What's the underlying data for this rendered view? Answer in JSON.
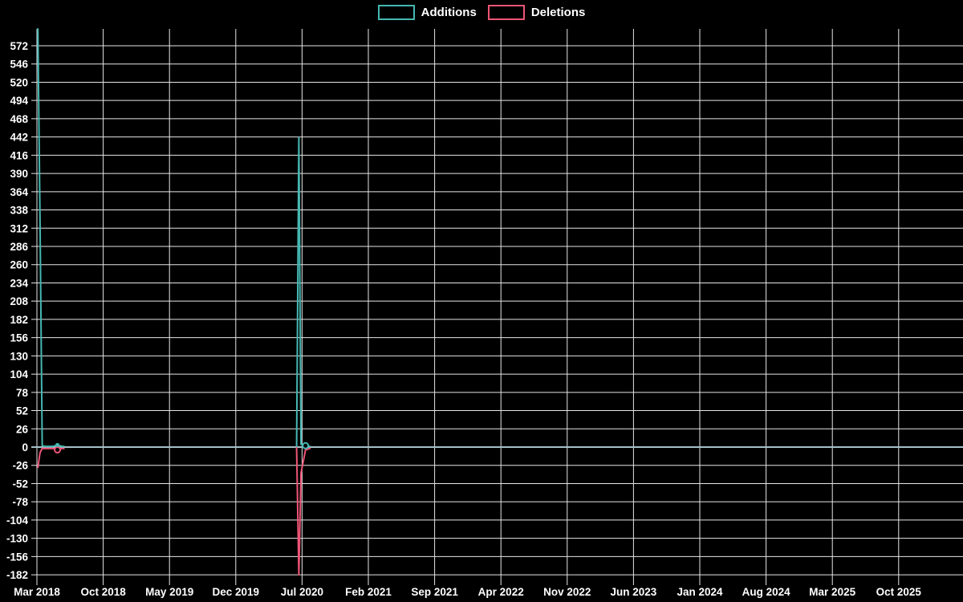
{
  "chart_data": {
    "type": "line",
    "title": "",
    "background": "#000000",
    "grid_color": "#e6e6e6",
    "zero_line_color": "#a6c0c9",
    "text_color": "#ffffff",
    "legend_position": "top-center",
    "x_axis": {
      "labels": [
        "Mar 2018",
        "Oct 2018",
        "May 2019",
        "Dec 2019",
        "Jul 2020",
        "Feb 2021",
        "Sep 2021",
        "Apr 2022",
        "Nov 2022",
        "Jun 2023",
        "Jan 2024",
        "Aug 2024",
        "Mar 2025",
        "Oct 2025"
      ],
      "label_step_months": 7,
      "start": "2018-03"
    },
    "y_axis": {
      "min": -182,
      "max": 572,
      "tick_step": 26,
      "ticks": [
        572,
        546,
        520,
        494,
        468,
        442,
        416,
        390,
        364,
        338,
        312,
        286,
        260,
        234,
        208,
        182,
        156,
        130,
        104,
        78,
        52,
        26,
        0,
        -26,
        -52,
        -78,
        -104,
        -130,
        -156,
        -182
      ]
    },
    "series": [
      {
        "name": "Additions",
        "color": "#45b7b2",
        "segments": [
          [
            [
              "2018-03-04",
              596
            ],
            [
              "2018-03-11",
              320
            ],
            [
              "2018-03-18",
              2
            ],
            [
              "2018-03-25",
              1
            ],
            [
              "2018-04-08",
              1
            ],
            [
              "2018-04-22",
              1
            ],
            [
              "2018-05-06",
              3,
              "dot"
            ],
            [
              "2018-05-20",
              1
            ],
            [
              "2018-05-27",
              1
            ]
          ],
          [
            [
              "2020-06-14",
              1
            ],
            [
              "2020-06-21",
              441
            ],
            [
              "2020-06-28",
              4
            ],
            [
              "2020-07-12",
              2,
              "ring"
            ],
            [
              "2020-07-26",
              1
            ]
          ]
        ]
      },
      {
        "name": "Deletions",
        "color": "#ed5576",
        "segments": [
          [
            [
              "2018-03-04",
              -29
            ],
            [
              "2018-03-11",
              -8
            ],
            [
              "2018-03-18",
              -2
            ],
            [
              "2018-03-25",
              -2
            ],
            [
              "2018-04-08",
              -2
            ],
            [
              "2018-04-22",
              -2
            ],
            [
              "2018-05-06",
              -4,
              "ring"
            ],
            [
              "2018-05-20",
              -2
            ],
            [
              "2018-05-27",
              -2
            ]
          ],
          [
            [
              "2020-06-14",
              -1
            ],
            [
              "2020-06-21",
              -182
            ],
            [
              "2020-06-28",
              -37
            ],
            [
              "2020-07-12",
              -4
            ],
            [
              "2020-07-26",
              -2
            ]
          ]
        ]
      }
    ]
  }
}
